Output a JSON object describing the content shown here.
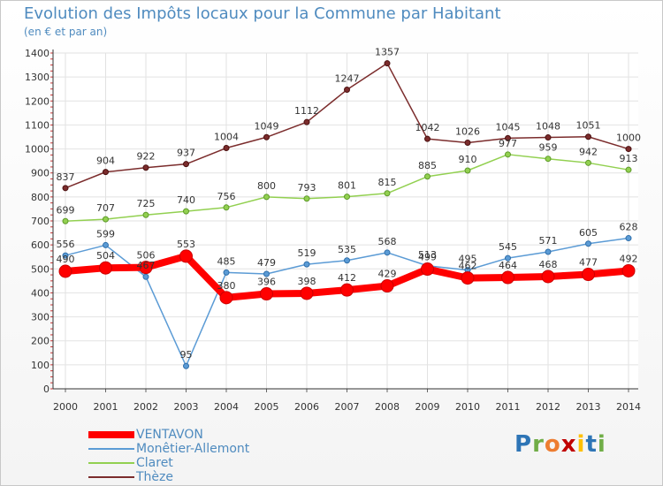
{
  "chart_data": {
    "type": "line",
    "title": "Evolution des Impôts locaux pour la Commune par Habitant",
    "subtitle": "(en € et par an)",
    "xlabel": "",
    "ylabel": "",
    "categories": [
      "2000",
      "2001",
      "2002",
      "2003",
      "2004",
      "2005",
      "2006",
      "2007",
      "2008",
      "2009",
      "2010",
      "2011",
      "2012",
      "2013",
      "2014"
    ],
    "ylim": [
      0,
      1400
    ],
    "yticks": [
      0,
      100,
      200,
      300,
      400,
      500,
      600,
      700,
      800,
      900,
      1000,
      1100,
      1200,
      1300,
      1400
    ],
    "grid": true,
    "series": [
      {
        "name": "VENTAVON",
        "color": "#ff0000",
        "values": [
          490,
          504,
          506,
          553,
          380,
          396,
          398,
          412,
          429,
          499,
          462,
          464,
          468,
          477,
          492
        ]
      },
      {
        "name": "Monêtier-Allemont",
        "color": "#5b9bd5",
        "values": [
          556,
          599,
          467,
          95,
          485,
          479,
          519,
          535,
          568,
          513,
          495,
          545,
          571,
          605,
          628
        ]
      },
      {
        "name": "Claret",
        "color": "#92d050",
        "values": [
          699,
          707,
          725,
          740,
          756,
          800,
          793,
          801,
          815,
          885,
          910,
          977,
          959,
          942,
          913
        ]
      },
      {
        "name": "Thèze",
        "color": "#7b2c2c",
        "values": [
          837,
          904,
          922,
          937,
          1004,
          1049,
          1112,
          1247,
          1357,
          1042,
          1026,
          1045,
          1048,
          1051,
          1000
        ]
      }
    ]
  },
  "logo": {
    "letters": [
      "P",
      "r",
      "o",
      "x",
      "i",
      "t",
      "i"
    ],
    "colors": [
      "#2e75b6",
      "#70ad47",
      "#ed7d31",
      "#c00000",
      "#ffc000",
      "#2e75b6",
      "#70ad47"
    ]
  }
}
